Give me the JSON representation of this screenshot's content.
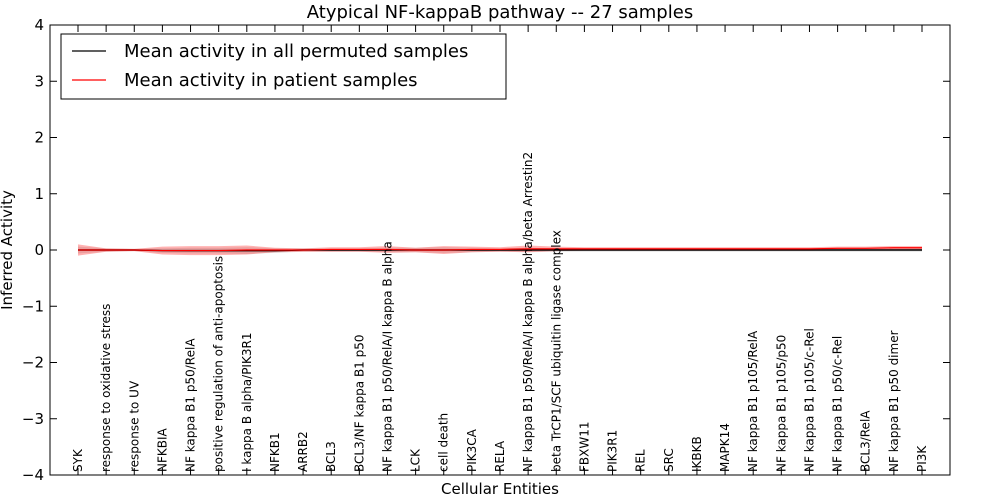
{
  "chart_data": {
    "type": "line",
    "title": "Atypical NF-kappaB pathway -- 27 samples",
    "xlabel": "Cellular Entities",
    "ylabel": "Inferred Activity",
    "ylim": [
      -4,
      4
    ],
    "yticks": [
      -4,
      -3,
      -2,
      -1,
      0,
      1,
      2,
      3,
      4
    ],
    "ytick_labels": [
      "−4",
      "−3",
      "−2",
      "−1",
      "0",
      "1",
      "2",
      "3",
      "4"
    ],
    "grid": false,
    "legend_position": "top-left",
    "categories": [
      "SYK",
      "response to oxidative stress",
      "response to UV",
      "NFKBIA",
      "NF kappa B1 p50/RelA",
      "positive regulation of anti-apoptosis",
      "I kappa B alpha/PIK3R1",
      "NFKB1",
      "ARRB2",
      "BCL3",
      "BCL3/NF kappa B1 p50",
      "NF kappa B1 p50/RelA/I kappa B alpha",
      "LCK",
      "cell death",
      "PIK3CA",
      "RELA",
      "NF kappa B1 p50/RelA/I kappa B alpha/beta Arrestin2",
      "beta TrCP1/SCF ubiquitin ligase complex",
      "FBXW11",
      "PIK3R1",
      "REL",
      "SRC",
      "IKBKB",
      "MAPK14",
      "NF kappa B1 p105/RelA",
      "NF kappa B1 p105/p50",
      "NF kappa B1 p105/c-Rel",
      "NF kappa B1 p50/c-Rel",
      "BCL3/RelA",
      "NF kappa B1 p50 dimer",
      "PI3K"
    ],
    "series": [
      {
        "name": "Mean activity in all permuted samples",
        "color": "#000000",
        "values": [
          0.0,
          0.0,
          0.0,
          -0.01,
          -0.01,
          -0.01,
          -0.01,
          -0.01,
          0.0,
          0.0,
          0.0,
          0.0,
          0.0,
          0.0,
          0.0,
          0.0,
          0.0,
          0.0,
          0.0,
          0.0,
          0.0,
          0.0,
          0.0,
          0.0,
          0.0,
          0.0,
          0.0,
          0.0,
          0.0,
          0.0,
          0.0
        ],
        "band": [
          0.06,
          0.03,
          0.02,
          0.04,
          0.05,
          0.05,
          0.06,
          0.04,
          0.03,
          0.03,
          0.03,
          0.04,
          0.04,
          0.05,
          0.04,
          0.03,
          0.04,
          0.03,
          0.03,
          0.03,
          0.03,
          0.03,
          0.03,
          0.03,
          0.03,
          0.03,
          0.03,
          0.03,
          0.03,
          0.03,
          0.03
        ]
      },
      {
        "name": "Mean activity in patient samples",
        "color": "#ff0000",
        "values": [
          0.0,
          0.0,
          0.0,
          -0.01,
          -0.01,
          -0.01,
          0.0,
          0.0,
          0.0,
          0.01,
          0.01,
          0.01,
          0.0,
          0.0,
          0.01,
          0.01,
          0.02,
          0.02,
          0.02,
          0.02,
          0.02,
          0.02,
          0.02,
          0.02,
          0.02,
          0.02,
          0.02,
          0.03,
          0.03,
          0.04,
          0.04
        ],
        "band": [
          0.1,
          0.03,
          0.02,
          0.07,
          0.08,
          0.08,
          0.08,
          0.04,
          0.03,
          0.04,
          0.04,
          0.06,
          0.04,
          0.07,
          0.05,
          0.04,
          0.06,
          0.04,
          0.03,
          0.03,
          0.03,
          0.03,
          0.03,
          0.03,
          0.03,
          0.03,
          0.03,
          0.03,
          0.03,
          0.03,
          0.03
        ]
      }
    ]
  }
}
